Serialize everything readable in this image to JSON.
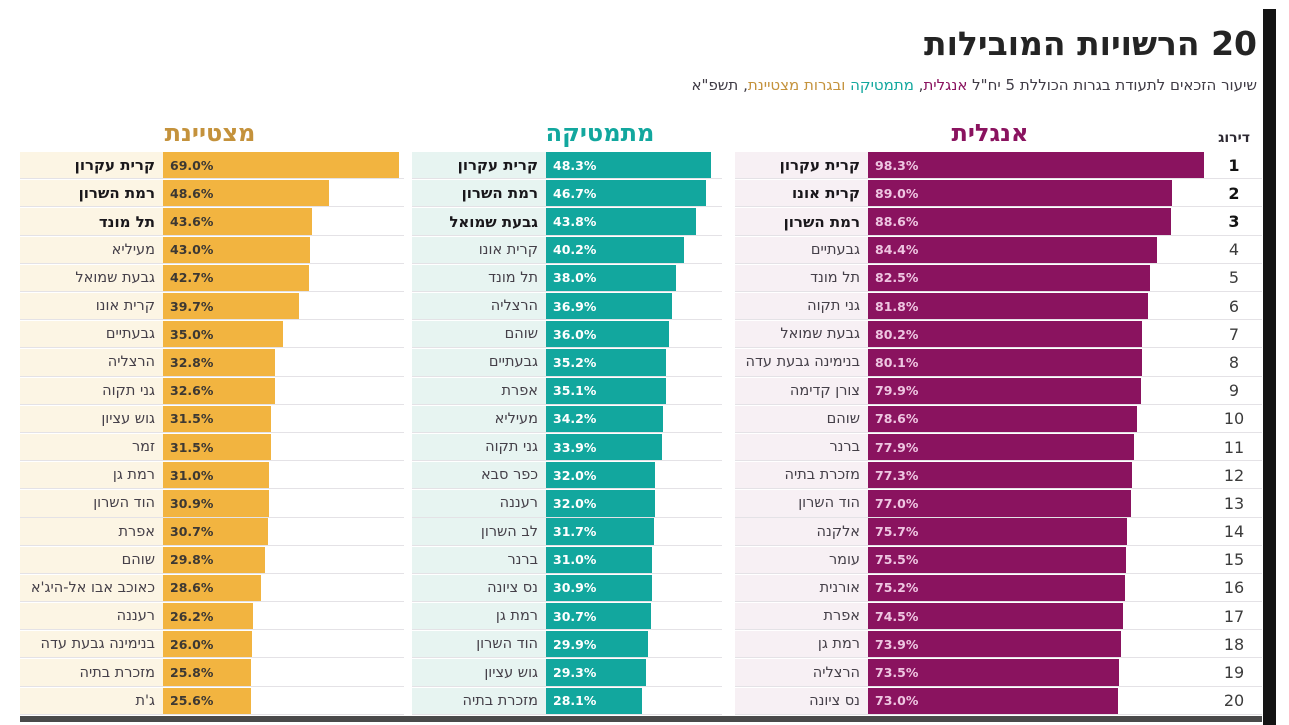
{
  "title": "20 הרשויות המובילות",
  "subtitle": {
    "part_lead": "שיעור הזכאים לתעודת בגרות הכוללת 5 יח\"ל ",
    "part_english": "אנגלית",
    "part_comma": ", ",
    "part_math": "מתמטיקה",
    "part_excellent": " ובגרות מצטיינת",
    "part_year": ", תשפ\"א"
  },
  "rank_header": "דירוג",
  "ranks": [
    1,
    2,
    3,
    4,
    5,
    6,
    7,
    8,
    9,
    10,
    11,
    12,
    13,
    14,
    15,
    16,
    17,
    18,
    19,
    20
  ],
  "colors": {
    "english_bar": "#8a135f",
    "english_value_text": "#eec6e1",
    "english_label_bg": "#f7f0f4",
    "math_bar": "#12a79e",
    "math_value_text": "#ffffff",
    "math_label_bg": "#e7f4f1",
    "excellent_bar": "#f2b440",
    "excellent_value_text": "#3c3833",
    "excellent_label_bg": "#fcf5e4",
    "excellent_header": "#c4923c",
    "title_text": "#242424",
    "subtitle_text": "#3f3b45",
    "separator": "#e4e2e6",
    "bottom_rule": "#4a4a4a",
    "edge_strip": "#141414"
  },
  "chart_data": [
    {
      "type": "bar",
      "title": "אנגלית",
      "unit": "%",
      "xlim": [
        0,
        100
      ],
      "bar_color": "#8a135f",
      "legend_position": "column-header",
      "grid": false,
      "categories": [
        "קרית עקרון",
        "קרית אונו",
        "רמת השרון",
        "גבעתיים",
        "תל מונד",
        "גני תקוה",
        "גבעת שמואל",
        "בנימינה גבעת עדה",
        "צורן קדימה",
        "שוהם",
        "ברנר",
        "מזכרת בתיה",
        "הוד השרון",
        "אלקנה",
        "עומר",
        "אורנית",
        "אפרת",
        "רמת גן",
        "הרצליה",
        "נס ציונה"
      ],
      "values": [
        98.3,
        89.0,
        88.6,
        84.4,
        82.5,
        81.8,
        80.2,
        80.1,
        79.9,
        78.6,
        77.9,
        77.3,
        77.0,
        75.7,
        75.5,
        75.2,
        74.5,
        73.9,
        73.5,
        73.0
      ]
    },
    {
      "type": "bar",
      "title": "מתמטיקה",
      "unit": "%",
      "xlim": [
        0,
        100
      ],
      "bar_color": "#12a79e",
      "legend_position": "column-header",
      "grid": false,
      "categories": [
        "קרית עקרון",
        "רמת השרון",
        "גבעת שמואל",
        "קרית אונו",
        "תל מונד",
        "הרצליה",
        "שוהם",
        "גבעתיים",
        "אפרת",
        "מעיליא",
        "גני תקוה",
        "כפר סבא",
        "רעננה",
        "לב השרון",
        "ברנר",
        "נס ציונה",
        "רמת גן",
        "הוד השרון",
        "גוש עציון",
        "מזכרת בתיה"
      ],
      "values": [
        48.3,
        46.7,
        43.8,
        40.2,
        38.0,
        36.9,
        36.0,
        35.2,
        35.1,
        34.2,
        33.9,
        32.0,
        32.0,
        31.7,
        31.0,
        30.9,
        30.7,
        29.9,
        29.3,
        28.1
      ]
    },
    {
      "type": "bar",
      "title": "מצטיינת",
      "unit": "%",
      "xlim": [
        0,
        100
      ],
      "bar_color": "#f2b440",
      "legend_position": "column-header",
      "grid": false,
      "categories": [
        "קרית עקרון",
        "רמת השרון",
        "תל מונד",
        "מעיליא",
        "גבעת שמואל",
        "קרית אונו",
        "גבעתיים",
        "הרצליה",
        "גני תקוה",
        "גוש עציון",
        "זמר",
        "רמת גן",
        "הוד השרון",
        "אפרת",
        "שוהם",
        "כאוכב אבו אל-היג'א",
        "רעננה",
        "בנימינה גבעת עדה",
        "מזכרת בתיה",
        "ג'ת"
      ],
      "values": [
        69.0,
        48.6,
        43.6,
        43.0,
        42.7,
        39.7,
        35.0,
        32.8,
        32.6,
        31.5,
        31.5,
        31.0,
        30.9,
        30.7,
        29.8,
        28.6,
        26.2,
        26.0,
        25.8,
        25.6
      ]
    }
  ]
}
